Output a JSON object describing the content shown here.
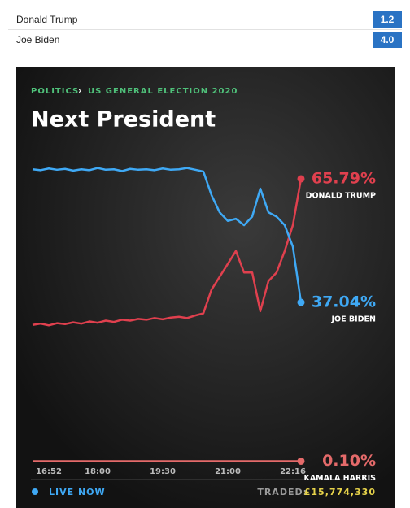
{
  "market_table": {
    "rows": [
      [
        "Donald Trump",
        "1.2"
      ],
      [
        "Joe Biden",
        "4.0"
      ]
    ]
  },
  "chart_data": {
    "type": "line",
    "breadcrumb": [
      "POLITICS",
      "US GENERAL ELECTION 2020"
    ],
    "title": "Next President",
    "categories": [
      null,
      null,
      "16:52",
      null,
      null,
      null,
      null,
      null,
      "18:00",
      null,
      null,
      null,
      null,
      null,
      null,
      null,
      "19:30",
      null,
      null,
      null,
      null,
      null,
      null,
      null,
      "21:00",
      null,
      null,
      null,
      null,
      null,
      null,
      null,
      "22:16",
      null
    ],
    "ylim": [
      0,
      100
    ],
    "series": [
      {
        "name": "DONALD TRUMP",
        "color": "#e0404e",
        "end_label": "65.79%",
        "values": [
          31.8,
          32.1,
          31.7,
          32.2,
          32.0,
          32.4,
          32.1,
          32.6,
          32.3,
          32.8,
          32.5,
          33.0,
          32.8,
          33.2,
          33.0,
          33.4,
          33.1,
          33.5,
          33.7,
          33.4,
          34.0,
          34.5,
          40,
          43,
          46,
          49,
          44,
          44,
          35,
          42,
          44,
          49,
          55,
          65.79
        ]
      },
      {
        "name": "JOE BIDEN",
        "color": "#3fa9f5",
        "end_label": "37.04%",
        "values": [
          68,
          67.8,
          68.2,
          67.9,
          68.1,
          67.7,
          68,
          67.8,
          68.3,
          67.9,
          68,
          67.6,
          68.1,
          67.9,
          68,
          67.8,
          68.2,
          67.9,
          68,
          68.3,
          67.9,
          67.5,
          62,
          58,
          56,
          56.5,
          55,
          57,
          63.5,
          58,
          57,
          55,
          50,
          37.04
        ]
      },
      {
        "name": "KAMALA HARRIS",
        "color": "#e46a6a",
        "end_label": "0.10%",
        "values": [
          0.1,
          0.1,
          0.1,
          0.1,
          0.1,
          0.1,
          0.1,
          0.1,
          0.1,
          0.1,
          0.1,
          0.1,
          0.1,
          0.1,
          0.1,
          0.1,
          0.1,
          0.1,
          0.1,
          0.1,
          0.1,
          0.1,
          0.1,
          0.1,
          0.1,
          0.1,
          0.1,
          0.1,
          0.1,
          0.1,
          0.1,
          0.1,
          0.1,
          0.1
        ]
      }
    ],
    "live_label": "LIVE NOW",
    "traded_label": "TRADED:",
    "traded_value": "£15,774,330"
  }
}
